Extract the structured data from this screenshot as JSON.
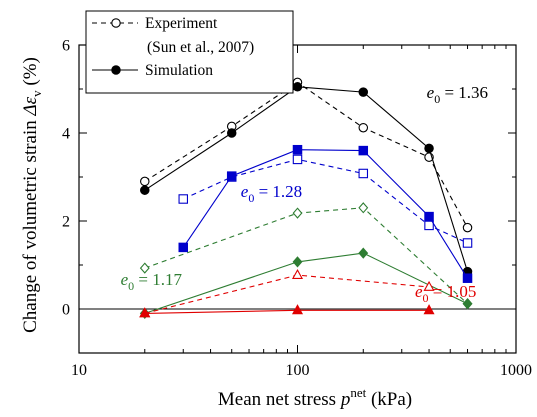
{
  "chart_data": {
    "type": "line",
    "xlabel_main": "Mean net stress ",
    "xlabel_var": "p",
    "xlabel_sup": "net",
    "xlabel_unit": " (kPa)",
    "ylabel_main": "Change of volumetric strain ",
    "ylabel_var": "Δε",
    "ylabel_sub": "v",
    "ylabel_unit": " (%)",
    "x_scale": "log",
    "xlim": [
      10,
      1000
    ],
    "ylim": [
      -1,
      6
    ],
    "x_ticks": [
      10,
      100,
      1000
    ],
    "x_tick_labels": [
      "10",
      "100",
      "1000"
    ],
    "y_ticks": [
      0,
      2,
      4,
      6
    ],
    "y_tick_labels": [
      "0",
      "2",
      "4",
      "6"
    ],
    "grid": false,
    "zero_line": true,
    "legend": {
      "position": "top-left",
      "entries": [
        {
          "label": "Experiment",
          "style": "dashed",
          "marker": "open-circle"
        },
        {
          "label": "(Sun et al., 2007)",
          "style": "none",
          "marker": "none"
        },
        {
          "label": "Simulation",
          "style": "solid",
          "marker": "filled-circle"
        }
      ]
    },
    "series": [
      {
        "group": "e0=1.36",
        "kind": "experiment",
        "color": "#000000",
        "marker": "circle",
        "filled": false,
        "dashed": true,
        "x": [
          20,
          50,
          100,
          200,
          400,
          600
        ],
        "y": [
          2.9,
          4.15,
          5.15,
          4.12,
          3.45,
          1.85
        ]
      },
      {
        "group": "e0=1.36",
        "kind": "simulation",
        "color": "#000000",
        "marker": "circle",
        "filled": true,
        "dashed": false,
        "x": [
          20,
          50,
          100,
          200,
          400,
          600
        ],
        "y": [
          2.7,
          4.0,
          5.05,
          4.93,
          3.65,
          0.85
        ]
      },
      {
        "group": "e0=1.28",
        "kind": "experiment",
        "color": "#0000cc",
        "marker": "square",
        "filled": false,
        "dashed": true,
        "x": [
          30,
          50,
          100,
          200,
          400,
          600
        ],
        "y": [
          2.5,
          3.0,
          3.4,
          3.08,
          1.9,
          1.5
        ]
      },
      {
        "group": "e0=1.28",
        "kind": "simulation",
        "color": "#0000cc",
        "marker": "square",
        "filled": true,
        "dashed": false,
        "x": [
          30,
          50,
          100,
          200,
          400,
          600
        ],
        "y": [
          1.4,
          3.02,
          3.62,
          3.6,
          2.1,
          0.7
        ]
      },
      {
        "group": "e0=1.17",
        "kind": "experiment",
        "color": "#2e7d32",
        "marker": "diamond",
        "filled": false,
        "dashed": true,
        "x": [
          20,
          100,
          200,
          600
        ],
        "y": [
          0.93,
          2.18,
          2.3,
          0.12
        ]
      },
      {
        "group": "e0=1.17",
        "kind": "simulation",
        "color": "#2e7d32",
        "marker": "diamond",
        "filled": true,
        "dashed": false,
        "x": [
          20,
          100,
          200,
          600
        ],
        "y": [
          -0.1,
          1.07,
          1.27,
          0.12
        ]
      },
      {
        "group": "e0=1.05",
        "kind": "experiment",
        "color": "#e00000",
        "marker": "triangle",
        "filled": false,
        "dashed": true,
        "x": [
          20,
          100,
          400
        ],
        "y": [
          -0.1,
          0.77,
          0.5
        ]
      },
      {
        "group": "e0=1.05",
        "kind": "simulation",
        "color": "#e00000",
        "marker": "triangle",
        "filled": true,
        "dashed": false,
        "x": [
          20,
          100,
          400
        ],
        "y": [
          -0.1,
          -0.03,
          -0.03
        ]
      }
    ],
    "annotations": [
      {
        "prefix": "e",
        "sub": "0",
        "value": " = 1.36",
        "color": "#000000",
        "x": 390,
        "y": 4.8
      },
      {
        "prefix": "e",
        "sub": "0",
        "value": " = 1.28",
        "color": "#0000cc",
        "x": 55,
        "y": 2.55
      },
      {
        "prefix": "e",
        "sub": "0",
        "value": " = 1.17",
        "color": "#2e7d32",
        "x": 15.5,
        "y": 0.55
      },
      {
        "prefix": "e",
        "sub": "0",
        "value": " = 1.05",
        "color": "#e00000",
        "x": 345,
        "y": 0.27
      }
    ]
  }
}
